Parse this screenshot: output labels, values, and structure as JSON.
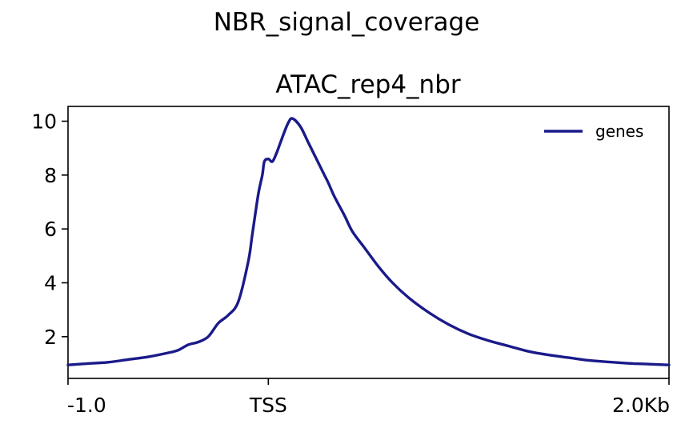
{
  "figure_title": "NBR_signal_coverage",
  "chart_data": {
    "type": "line",
    "title": "ATAC_rep4_nbr",
    "xlabel": "",
    "ylabel": "",
    "xlim": [
      -1.0,
      2.0
    ],
    "ylim": [
      0.45,
      10.55
    ],
    "x_ticks": [
      {
        "value": -1.0,
        "label": "-1.0"
      },
      {
        "value": 0.0,
        "label": "TSS"
      },
      {
        "value": 2.0,
        "label": "2.0Kb"
      }
    ],
    "y_ticks": [
      {
        "value": 2,
        "label": "2"
      },
      {
        "value": 4,
        "label": "4"
      },
      {
        "value": 6,
        "label": "6"
      },
      {
        "value": 8,
        "label": "8"
      },
      {
        "value": 10,
        "label": "10"
      }
    ],
    "grid": false,
    "legend": {
      "position": "upper-right"
    },
    "series": [
      {
        "name": "genes",
        "color": "#1a1a8a",
        "x": [
          -1.0,
          -0.9,
          -0.8,
          -0.7,
          -0.6,
          -0.5,
          -0.45,
          -0.4,
          -0.35,
          -0.3,
          -0.25,
          -0.2,
          -0.15,
          -0.1,
          -0.08,
          -0.05,
          -0.03,
          -0.02,
          0.0,
          0.02,
          0.04,
          0.06,
          0.08,
          0.1,
          0.12,
          0.16,
          0.2,
          0.24,
          0.28,
          0.3,
          0.33,
          0.38,
          0.42,
          0.48,
          0.55,
          0.62,
          0.7,
          0.8,
          0.9,
          1.0,
          1.1,
          1.2,
          1.3,
          1.4,
          1.5,
          1.6,
          1.7,
          1.8,
          1.9,
          2.0
        ],
        "values": [
          0.95,
          1.0,
          1.05,
          1.15,
          1.25,
          1.4,
          1.5,
          1.7,
          1.8,
          2.0,
          2.5,
          2.8,
          3.3,
          4.8,
          5.8,
          7.3,
          8.0,
          8.5,
          8.6,
          8.5,
          8.8,
          9.2,
          9.6,
          9.95,
          10.1,
          9.8,
          9.2,
          8.6,
          8.0,
          7.7,
          7.2,
          6.5,
          5.9,
          5.3,
          4.6,
          4.0,
          3.45,
          2.9,
          2.45,
          2.1,
          1.85,
          1.65,
          1.45,
          1.32,
          1.22,
          1.12,
          1.06,
          1.01,
          0.98,
          0.95
        ]
      }
    ]
  }
}
